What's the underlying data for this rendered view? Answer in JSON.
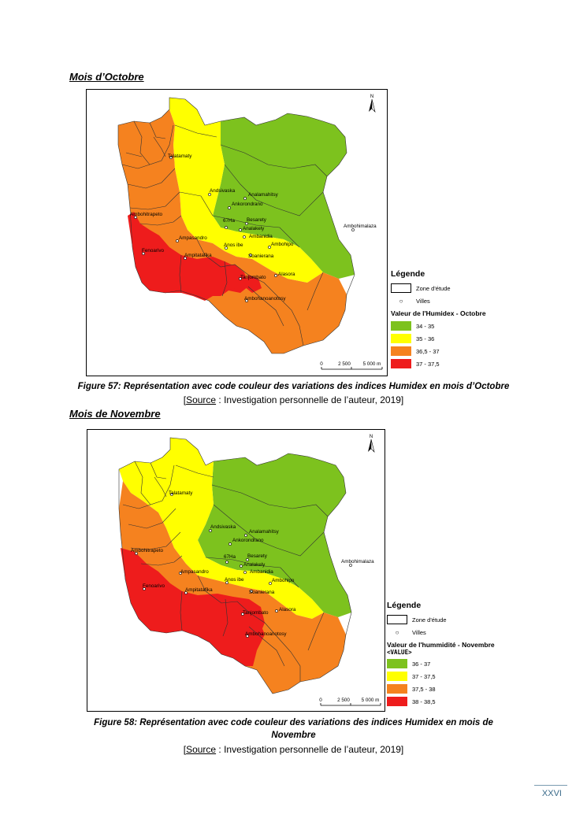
{
  "section1": {
    "heading": "Mois d’Octobre",
    "caption": "Figure 57: Représentation avec code couleur des variations des indices Humidex en mois d’Octobre",
    "source_open": "[",
    "source_word": "Source",
    "source_rest": " : Investigation personnelle de l’auteur, 2019]",
    "legend": {
      "title": "Légende",
      "zone_label": "Zone d'étude",
      "villes_label": "Villes",
      "value_title": "Valeur de l'Humidex - Octobre",
      "value_field": "",
      "classes": [
        {
          "label": "34 - 35",
          "color": "#7dc21e"
        },
        {
          "label": "35 - 36",
          "color": "#ffff00"
        },
        {
          "label": "36,5 - 37",
          "color": "#f5821f"
        },
        {
          "label": "37 - 37,5",
          "color": "#ee1c1c"
        }
      ]
    }
  },
  "section2": {
    "heading": "Mois de Novembre",
    "caption_line1": "Figure 58: Représentation avec code couleur des variations des indices Humidex en mois de",
    "caption_line2": "Novembre",
    "source_open": "[",
    "source_word": "Source",
    "source_rest": " : Investigation personnelle de l’auteur, 2019]",
    "legend": {
      "title": "Légende",
      "zone_label": "Zone d'étude",
      "villes_label": "Villes",
      "value_title": "Valeur de l'hummidité - Novembre",
      "value_field": "<VALUE>",
      "classes": [
        {
          "label": "36 - 37",
          "color": "#7dc21e"
        },
        {
          "label": "37 - 37,5",
          "color": "#ffff00"
        },
        {
          "label": "37,5 - 38",
          "color": "#f5821f"
        },
        {
          "label": "38 - 38,5",
          "color": "#ee1c1c"
        }
      ]
    }
  },
  "map": {
    "north": "N",
    "scale_labels": [
      "0",
      "2 500",
      "5 000 m"
    ],
    "towns": [
      "Talatamaty",
      "Andsivaska",
      "Analamahitsy",
      "Ankorondrano",
      "Ambohimalaza",
      "67Ha",
      "Besarety",
      "Analakely",
      "Ambanidia",
      "Ambohitrapeto",
      "Ambohipo",
      "Ampasandro",
      "Anosibe",
      "Fenoarivo",
      "Ampitatafika",
      "Soanierana",
      "Tanjombato",
      "Alasora",
      "Ambohijanaka"
    ],
    "towns_oct": [
      "Talatamaty",
      "Andsivaska",
      "Analamahitsy",
      "Ankorondrano",
      "Ambohimalaza",
      "67Ha",
      "Besarety",
      "Analakely",
      "Ambanidia",
      "Ambohitrapeto",
      "Ambohipo",
      "Ampasandro",
      "Anos ibe",
      "Fenoarivo",
      "Ampitatafika",
      "Soanierana",
      "Tanjombato",
      "Alasora",
      "Ambohanoanotosy"
    ],
    "towns_nov": [
      "Talatamaty",
      "Andsivaska",
      "Analamahitsy",
      "Ankorondrano",
      "Ambohimalaza",
      "67Ha",
      "Besarety",
      "Analakely",
      "Ambanidia",
      "Ambohitrapeto",
      "Ambohipo",
      "Ampasandro",
      "Anos ibe",
      "Fenoarivo",
      "Ampitatafika",
      "Soanierana",
      "Tanjombato",
      "Alasora",
      "Ambohanoanotosy"
    ]
  },
  "footer": {
    "page_number": "XXVI"
  }
}
